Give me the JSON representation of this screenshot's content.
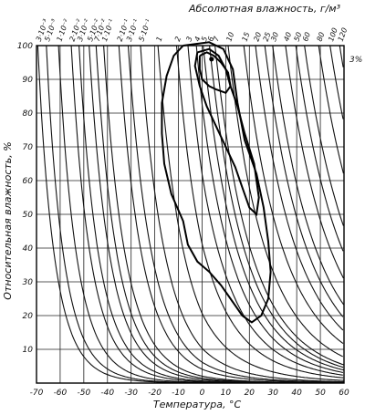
{
  "chart_data": {
    "type": "line",
    "title": "",
    "top_axis_label": "Абсолютная влажность, г/м³",
    "xlabel": "Температура, °С",
    "ylabel": "Относительная влажность, %",
    "xlim": [
      -70,
      60
    ],
    "ylim": [
      0,
      100
    ],
    "x_ticks": [
      "-70",
      "-60",
      "-50",
      "-40",
      "-30",
      "-20",
      "-10",
      "0",
      "10",
      "20",
      "30",
      "40",
      "50",
      "60"
    ],
    "y_ticks": [
      "10",
      "20",
      "30",
      "40",
      "50",
      "60",
      "70",
      "80",
      "90",
      "100"
    ],
    "absolute_humidity_curves": [
      {
        "label": "3·10⁻³",
        "value": 0.003
      },
      {
        "label": "5·10⁻³",
        "value": 0.005
      },
      {
        "label": "1·10⁻²",
        "value": 0.01
      },
      {
        "label": "2·10⁻²",
        "value": 0.02
      },
      {
        "label": "3·10⁻²",
        "value": 0.03
      },
      {
        "label": "5·10⁻²",
        "value": 0.05
      },
      {
        "label": "7·10⁻²",
        "value": 0.07
      },
      {
        "label": "1·10⁻¹",
        "value": 0.1
      },
      {
        "label": "2·10⁻¹",
        "value": 0.2
      },
      {
        "label": "3·10⁻¹",
        "value": 0.3
      },
      {
        "label": "5·10⁻¹",
        "value": 0.5
      },
      {
        "label": "1",
        "value": 1
      },
      {
        "label": "2",
        "value": 2
      },
      {
        "label": "3",
        "value": 3
      },
      {
        "label": "4",
        "value": 4
      },
      {
        "label": "5",
        "value": 5
      },
      {
        "label": "6",
        "value": 6
      },
      {
        "label": "7",
        "value": 7
      },
      {
        "label": "10",
        "value": 10
      },
      {
        "label": "15",
        "value": 15
      },
      {
        "label": "20",
        "value": 20
      },
      {
        "label": "25",
        "value": 25
      },
      {
        "label": "30",
        "value": 30
      },
      {
        "label": "40",
        "value": 40
      },
      {
        "label": "50",
        "value": 50
      },
      {
        "label": "60",
        "value": 60
      },
      {
        "label": "80",
        "value": 80
      },
      {
        "label": "100",
        "value": 100
      },
      {
        "label": "120",
        "value": 120
      }
    ],
    "annotation": "3%",
    "contours": [
      {
        "points": [
          [
            -8,
            100
          ],
          [
            3,
            101
          ],
          [
            9,
            99
          ],
          [
            13,
            93
          ],
          [
            15,
            83
          ],
          [
            18,
            72
          ],
          [
            23,
            62
          ],
          [
            26,
            52
          ],
          [
            28,
            42
          ],
          [
            29,
            33
          ],
          [
            28,
            25
          ],
          [
            25,
            20
          ],
          [
            21,
            18
          ],
          [
            17,
            20
          ],
          [
            12,
            25
          ],
          [
            8,
            29
          ],
          [
            3,
            33
          ],
          [
            -2,
            36
          ],
          [
            -6,
            41
          ],
          [
            -8,
            48
          ],
          [
            -13,
            56
          ],
          [
            -16,
            65
          ],
          [
            -17,
            74
          ],
          [
            -17,
            83
          ],
          [
            -15,
            91
          ],
          [
            -12,
            97
          ],
          [
            -8,
            100
          ]
        ]
      },
      {
        "points": [
          [
            -2,
            98
          ],
          [
            3,
            99
          ],
          [
            7,
            97
          ],
          [
            10,
            93
          ],
          [
            12,
            88
          ],
          [
            15,
            82
          ],
          [
            18,
            74
          ],
          [
            22,
            65
          ],
          [
            24,
            55
          ],
          [
            23,
            50
          ],
          [
            20,
            52
          ],
          [
            17,
            58
          ],
          [
            14,
            64
          ],
          [
            10,
            70
          ],
          [
            6,
            76
          ],
          [
            2,
            82
          ],
          [
            -1,
            88
          ],
          [
            -3,
            94
          ],
          [
            -2,
            98
          ]
        ]
      },
      {
        "points": [
          [
            -1,
            97
          ],
          [
            2,
            98
          ],
          [
            5,
            97
          ],
          [
            8,
            95
          ],
          [
            11,
            92
          ],
          [
            12,
            88
          ],
          [
            10,
            86
          ],
          [
            6,
            87
          ],
          [
            3,
            88
          ],
          [
            0,
            90
          ],
          [
            -1,
            93
          ],
          [
            -1,
            97
          ]
        ]
      }
    ],
    "marker": {
      "x": 4,
      "y": 96
    }
  }
}
